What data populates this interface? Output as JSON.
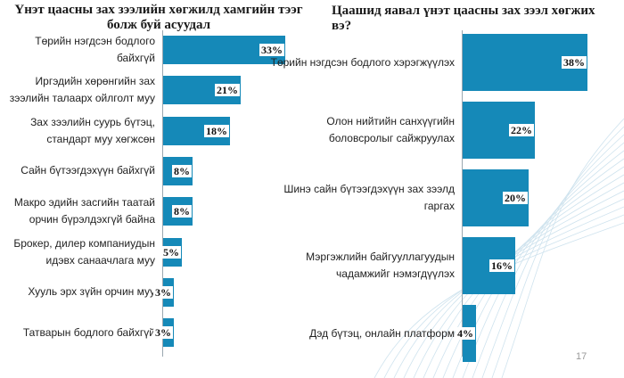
{
  "page_number": "17",
  "chart_data": [
    {
      "type": "bar",
      "orientation": "horizontal",
      "title": "Үнэт цаасны зах зээлийн хөгжилд хамгийн тээг болж буй асуудал",
      "categories": [
        "Төрийн нэгдсэн бодлого байхгүй",
        "Иргэдийн хөрөнгийн зах зээлийн талаарх ойлголт муу",
        "Зах зээлийн суурь бүтэц, стандарт муу хөгжсөн",
        "Сайн бүтээгдэхүүн байхгүй",
        "Макро эдийн засгийн таатай орчин бүрэлдэхгүй байна",
        "Брокер, дилер компаниудын идэвх санаачлага муу",
        "Хууль эрх зүйн орчин муу",
        "Татварын бодлого байхгүй"
      ],
      "values": [
        33,
        21,
        18,
        8,
        8,
        5,
        3,
        3
      ],
      "value_labels": [
        "33%",
        "21%",
        "18%",
        "8%",
        "8%",
        "5%",
        "3%",
        "3%"
      ],
      "unit": "%",
      "xlim": [
        0,
        33
      ],
      "grid": false,
      "color": "#1589b8"
    },
    {
      "type": "bar",
      "orientation": "horizontal",
      "title": "Цаашид яавал үнэт цаасны зах зээл хөгжих вэ?",
      "categories": [
        "Төрийн нэгдсэн бодлого хэрэгжүүлэх",
        "Олон нийтийн санхүүгийн боловсролыг сайжруулах",
        "Шинэ сайн бүтээгдэхүүн зах зээлд гаргах",
        "Мэргэжлийн байгууллагуудын чадамжийг нэмэгдүүлэх",
        "Дэд бүтэц, онлайн платформ"
      ],
      "values": [
        38,
        22,
        20,
        16,
        4
      ],
      "value_labels": [
        "38%",
        "22%",
        "20%",
        "16%",
        "4%"
      ],
      "unit": "%",
      "xlim": [
        0,
        38
      ],
      "grid": false,
      "color": "#1589b8"
    }
  ]
}
